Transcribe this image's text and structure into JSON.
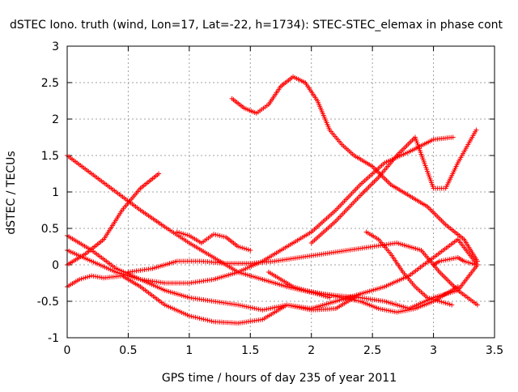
{
  "chart_data": {
    "type": "scatter",
    "title": "dSTEC Iono. truth (wind, Lon=17, Lat=-22, h=1734): STEC-STEC_elemax in phase cont",
    "xlabel": "GPS time / hours of day 235 of year 2011",
    "ylabel": "dSTEC  / TECUs",
    "xlim": [
      0,
      3.5
    ],
    "ylim": [
      -1,
      3
    ],
    "xticks": [
      0,
      0.5,
      1,
      1.5,
      2,
      2.5,
      3,
      3.5
    ],
    "xtick_labels": [
      "0",
      "0.5",
      "1",
      "1.5",
      "2",
      "2.5",
      "3",
      "3.5"
    ],
    "yticks": [
      -1,
      -0.5,
      0,
      0.5,
      1,
      1.5,
      2,
      2.5,
      3
    ],
    "ytick_labels": [
      "-1",
      "-0.5",
      "0",
      "0.5",
      "1",
      "1.5",
      "2",
      "2.5",
      "3"
    ],
    "grid": true,
    "legend": "none",
    "marker": "+",
    "color": "#ff0000",
    "series": [
      {
        "x": [
          0.0,
          0.2,
          0.4,
          0.6,
          0.8,
          1.0,
          1.2,
          1.4,
          1.6,
          1.8,
          2.0,
          2.2,
          2.4,
          2.6,
          2.8,
          3.0,
          3.2,
          3.36
        ],
        "y": [
          1.5,
          1.25,
          1.0,
          0.75,
          0.52,
          0.3,
          0.1,
          -0.1,
          -0.2,
          -0.3,
          -0.38,
          -0.42,
          -0.45,
          -0.5,
          -0.6,
          -0.45,
          -0.35,
          0.0
        ]
      },
      {
        "x": [
          0.0,
          0.15,
          0.3,
          0.45,
          0.6,
          0.75
        ],
        "y": [
          0.0,
          0.15,
          0.35,
          0.75,
          1.05,
          1.25
        ]
      },
      {
        "x": [
          0.0,
          0.2,
          0.4,
          0.6,
          0.8,
          1.0,
          1.2,
          1.4,
          1.6,
          1.8,
          2.0,
          2.2,
          2.4,
          2.6,
          2.8,
          3.0,
          3.2,
          3.36
        ],
        "y": [
          0.4,
          0.2,
          -0.05,
          -0.2,
          -0.35,
          -0.45,
          -0.5,
          -0.55,
          -0.62,
          -0.55,
          -0.6,
          -0.5,
          -0.4,
          -0.3,
          -0.15,
          0.1,
          0.35,
          0.0
        ]
      },
      {
        "x": [
          0.0,
          0.1,
          0.2,
          0.3,
          0.45,
          0.6,
          0.8,
          1.0,
          1.2,
          1.4,
          1.6,
          1.8,
          2.0,
          2.2,
          2.4
        ],
        "y": [
          -0.3,
          -0.2,
          -0.15,
          -0.18,
          -0.15,
          -0.3,
          -0.55,
          -0.7,
          -0.78,
          -0.8,
          -0.75,
          -0.55,
          -0.62,
          -0.6,
          -0.4
        ]
      },
      {
        "x": [
          0.0,
          0.2,
          0.4,
          0.6,
          0.8,
          1.0,
          1.2,
          1.4,
          1.6,
          1.8,
          2.0,
          2.2,
          2.4,
          2.6,
          2.8,
          3.0,
          3.16
        ],
        "y": [
          0.2,
          0.05,
          -0.1,
          -0.2,
          -0.25,
          -0.25,
          -0.2,
          -0.1,
          0.05,
          0.25,
          0.45,
          0.75,
          1.1,
          1.4,
          1.55,
          1.72,
          1.75
        ]
      },
      {
        "x": [
          0.5,
          0.7,
          0.9,
          1.1,
          1.3,
          1.5,
          1.7,
          1.9,
          2.1,
          2.3,
          2.5,
          2.7,
          2.9,
          3.05,
          3.2,
          3.36
        ],
        "y": [
          -0.1,
          -0.05,
          0.05,
          0.05,
          0.02,
          0.02,
          0.05,
          0.1,
          0.15,
          0.2,
          0.25,
          0.3,
          0.2,
          -0.1,
          -0.35,
          -0.55
        ]
      },
      {
        "x": [
          0.9,
          1.0,
          1.1,
          1.2,
          1.3,
          1.4,
          1.5
        ],
        "y": [
          0.45,
          0.4,
          0.3,
          0.42,
          0.38,
          0.25,
          0.2
        ]
      },
      {
        "x": [
          1.35,
          1.45,
          1.55,
          1.65,
          1.75,
          1.85,
          1.95,
          2.05,
          2.15,
          2.25,
          2.35,
          2.5,
          2.65,
          2.8,
          2.95,
          3.1,
          3.25,
          3.36
        ],
        "y": [
          2.28,
          2.15,
          2.08,
          2.2,
          2.45,
          2.58,
          2.5,
          2.25,
          1.85,
          1.65,
          1.5,
          1.35,
          1.1,
          0.95,
          0.8,
          0.55,
          0.35,
          0.05
        ]
      },
      {
        "x": [
          2.0,
          2.2,
          2.4,
          2.55,
          2.7,
          2.85,
          3.0,
          3.1,
          3.2,
          3.3,
          3.35
        ],
        "y": [
          0.3,
          0.6,
          0.95,
          1.2,
          1.5,
          1.75,
          1.05,
          1.05,
          1.4,
          1.7,
          1.85
        ]
      },
      {
        "x": [
          1.8,
          1.95,
          2.1,
          2.25,
          2.4,
          2.55,
          2.7,
          2.85,
          3.0,
          3.1,
          3.2
        ],
        "y": [
          -0.3,
          -0.35,
          -0.4,
          -0.45,
          -0.5,
          -0.6,
          -0.65,
          -0.6,
          -0.5,
          -0.4,
          -0.3
        ]
      },
      {
        "x": [
          2.45,
          2.55,
          2.65,
          2.75,
          2.85,
          2.95,
          3.05,
          3.15
        ],
        "y": [
          0.45,
          0.35,
          0.15,
          -0.1,
          -0.3,
          -0.45,
          -0.5,
          -0.55
        ]
      },
      {
        "x": [
          1.65,
          1.75,
          1.85,
          1.95,
          2.05,
          2.15
        ],
        "y": [
          -0.1,
          -0.2,
          -0.3,
          -0.35,
          -0.4,
          -0.45
        ]
      },
      {
        "x": [
          3.0,
          3.05,
          3.2,
          3.25,
          3.35
        ],
        "y": [
          0.0,
          0.05,
          0.1,
          0.05,
          0.0
        ]
      }
    ]
  }
}
